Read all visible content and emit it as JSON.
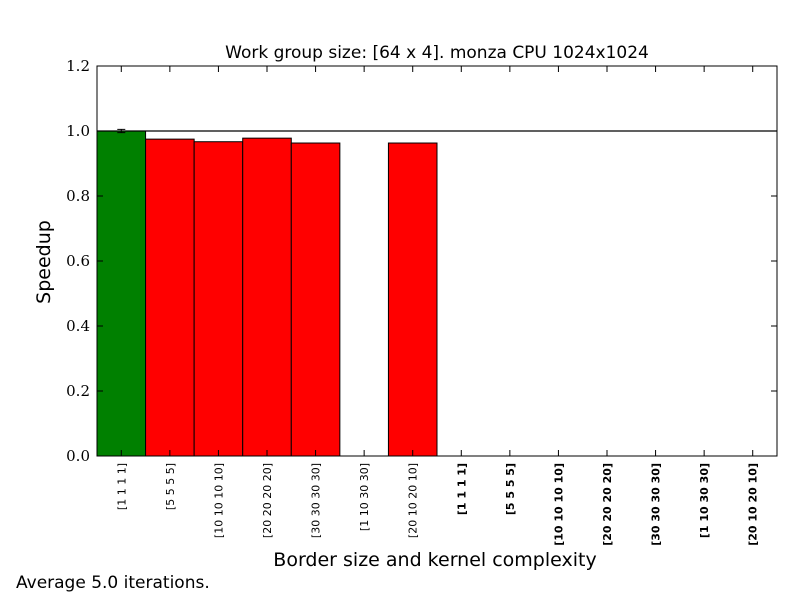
{
  "chart_data": {
    "type": "bar",
    "title": "Work group size: [64 x 4]. monza CPU 1024x1024",
    "xlabel": "Border size and kernel complexity",
    "ylabel": "Speedup",
    "ylim": [
      0.0,
      1.2
    ],
    "yticks": [
      "0.0",
      "0.2",
      "0.4",
      "0.6",
      "0.8",
      "1.0",
      "1.2"
    ],
    "reference_line": 1.0,
    "grid": false,
    "categories": [
      "[1 1 1 1]",
      "[5 5 5 5]",
      "[10 10 10 10]",
      "[20 20 20 20]",
      "[30 30 30 30]",
      "[1 10 30 30]",
      "[20 10 20 10]",
      "[1 1 1 1]",
      "[5 5 5 5]",
      "[10 10 10 10]",
      "[20 20 20 20]",
      "[30 30 30 30]",
      "[1 10 30 30]",
      "[20 10 20 10]"
    ],
    "bold_categories": [
      false,
      false,
      false,
      false,
      false,
      false,
      false,
      true,
      true,
      true,
      true,
      true,
      true,
      true
    ],
    "values": [
      1.0,
      0.975,
      0.967,
      0.978,
      0.963,
      null,
      0.963,
      null,
      null,
      null,
      null,
      null,
      null,
      null
    ],
    "bar_colors": [
      "#008000",
      "#ff0000",
      "#ff0000",
      "#ff0000",
      "#ff0000",
      "#ff0000",
      "#ff0000",
      "#ff0000",
      "#ff0000",
      "#ff0000",
      "#ff0000",
      "#ff0000",
      "#ff0000",
      "#ff0000"
    ],
    "error_bars": [
      0.005,
      null,
      null,
      null,
      null,
      null,
      null,
      null,
      null,
      null,
      null,
      null,
      null,
      null
    ]
  },
  "footnote": "Average 5.0 iterations."
}
